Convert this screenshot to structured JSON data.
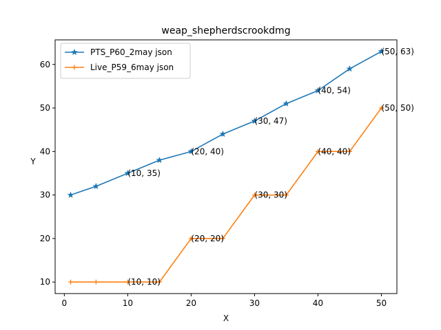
{
  "chart_data": {
    "type": "line",
    "title": "weap_shepherdscrookdmg",
    "xlabel": "X",
    "ylabel": "Y",
    "xlim": [
      -1.45,
      52.45
    ],
    "ylim": [
      7.35,
      65.65
    ],
    "xticks": [
      0,
      10,
      20,
      30,
      40,
      50
    ],
    "yticks": [
      10,
      20,
      30,
      40,
      50,
      60
    ],
    "grid": false,
    "legend_position": "upper-left",
    "series": [
      {
        "name": "PTS_P60_2may json",
        "color": "#1f77b4",
        "marker": "star",
        "x": [
          1,
          5,
          10,
          15,
          20,
          25,
          30,
          35,
          40,
          45,
          50
        ],
        "y": [
          30,
          32,
          35,
          38,
          40,
          44,
          47,
          51,
          54,
          59,
          63
        ]
      },
      {
        "name": "Live_P59_6may json",
        "color": "#ff7f0e",
        "marker": "plus",
        "x": [
          1,
          5,
          10,
          15,
          20,
          25,
          30,
          35,
          40,
          45,
          50
        ],
        "y": [
          10,
          10,
          10,
          10,
          20,
          20,
          30,
          30,
          40,
          40,
          50
        ]
      }
    ],
    "annotations": [
      {
        "text": "(10, 35)",
        "x": 10,
        "y": 35
      },
      {
        "text": "(20, 40)",
        "x": 20,
        "y": 40
      },
      {
        "text": "(30, 47)",
        "x": 30,
        "y": 47
      },
      {
        "text": "(40, 54)",
        "x": 40,
        "y": 54
      },
      {
        "text": "(50, 63)",
        "x": 50,
        "y": 63
      },
      {
        "text": "(10, 10)",
        "x": 10,
        "y": 10
      },
      {
        "text": "(20, 20)",
        "x": 20,
        "y": 20
      },
      {
        "text": "(30, 30)",
        "x": 30,
        "y": 30
      },
      {
        "text": "(40, 40)",
        "x": 40,
        "y": 40
      },
      {
        "text": "(50, 50)",
        "x": 50,
        "y": 50
      }
    ]
  }
}
